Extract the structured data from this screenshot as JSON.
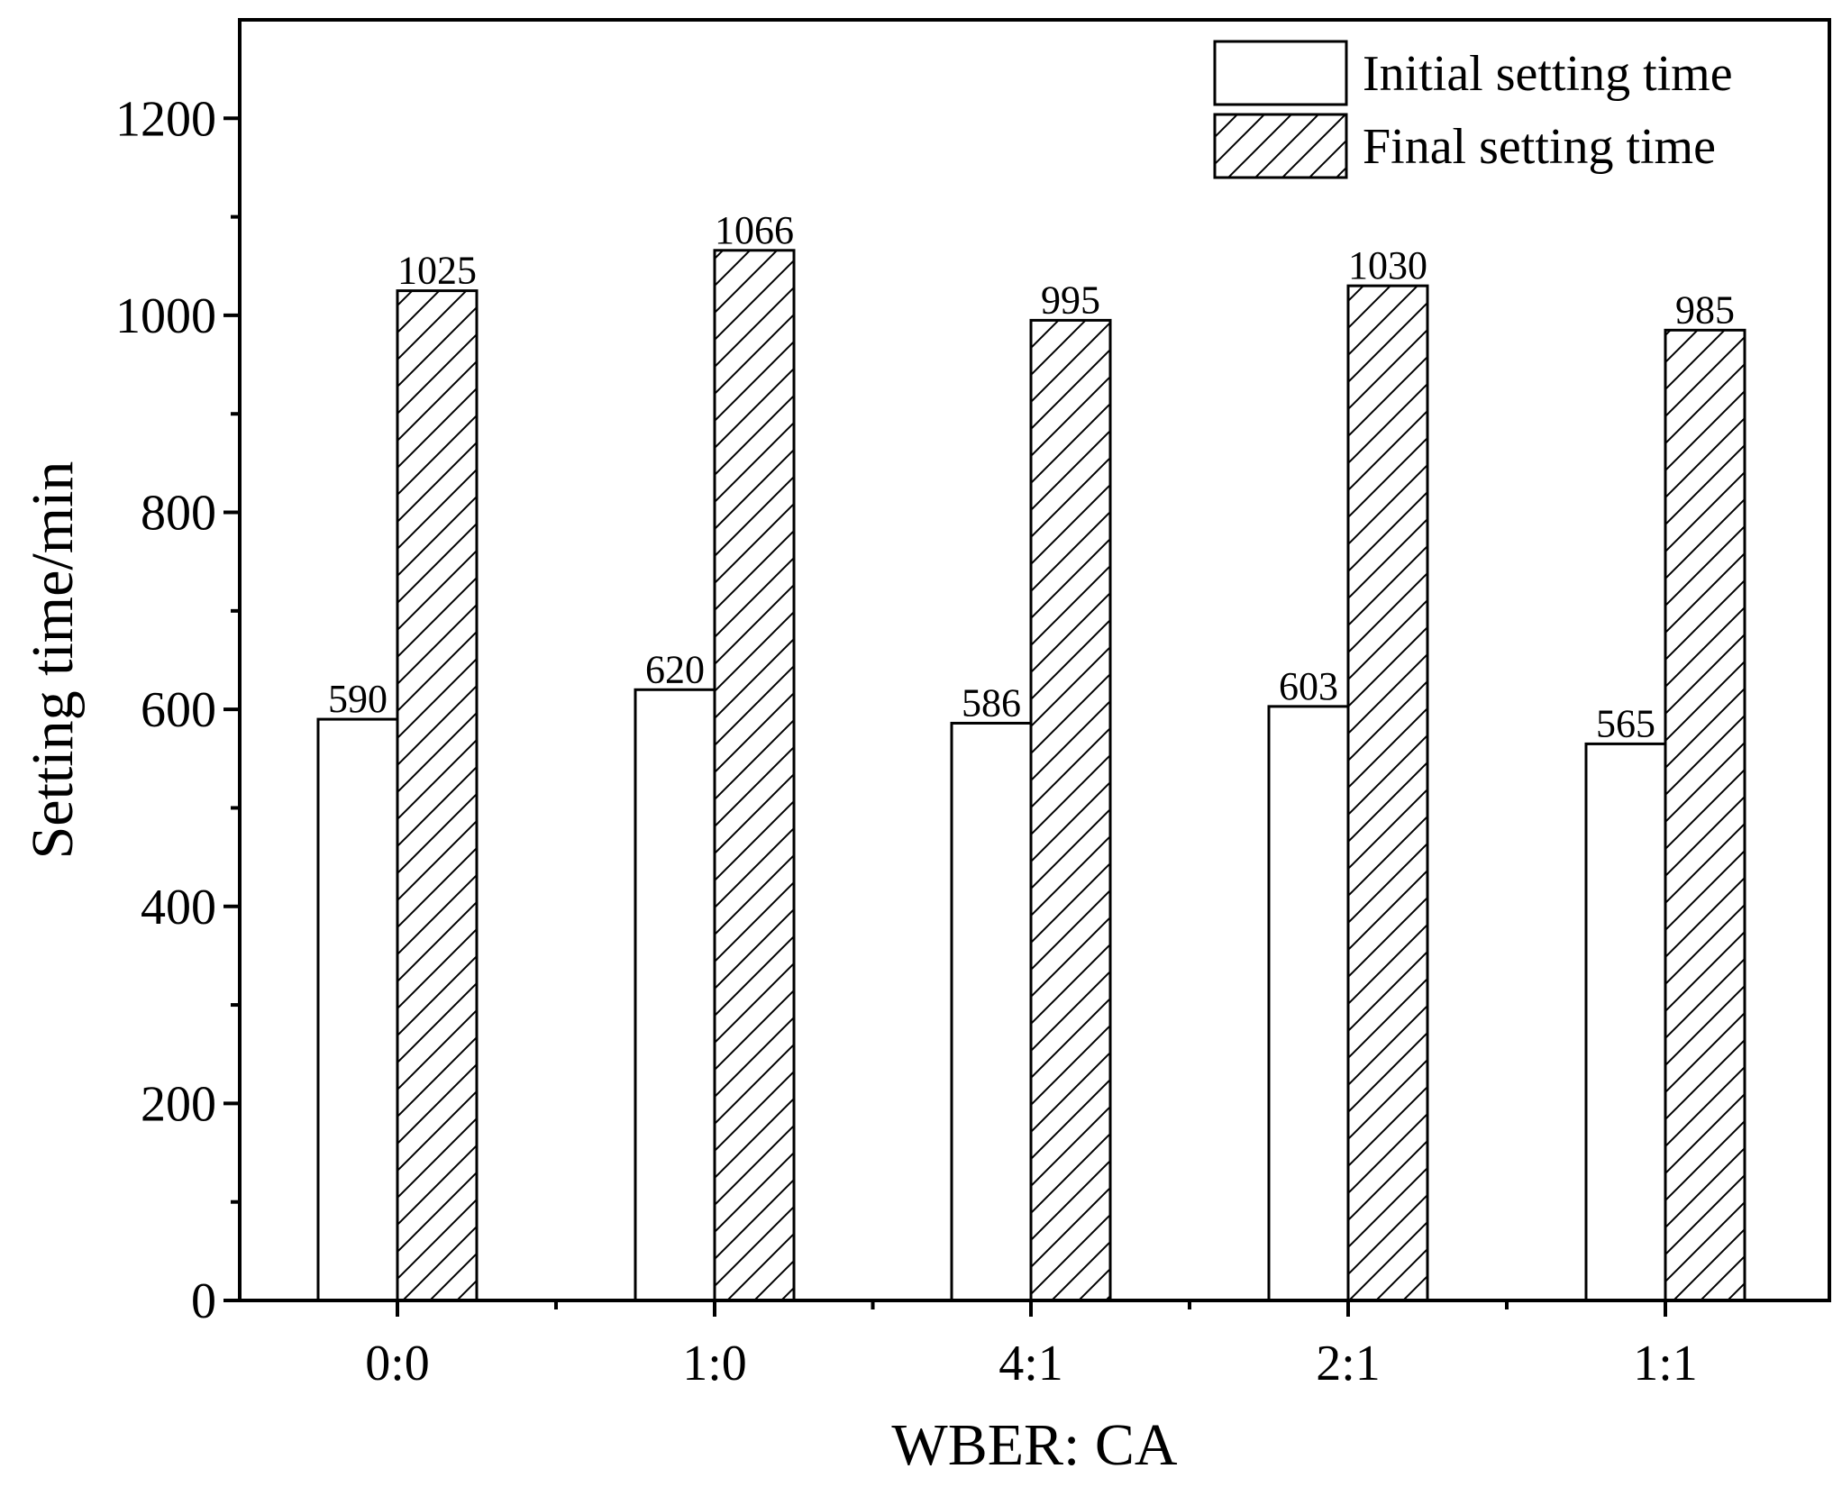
{
  "chart_data": {
    "type": "bar",
    "xlabel": "WBER: CA",
    "ylabel": "Setting time/min",
    "ylim": [
      0,
      1300
    ],
    "yticks": [
      0,
      200,
      400,
      600,
      800,
      1000,
      1200
    ],
    "categories": [
      "0:0",
      "1:0",
      "4:1",
      "2:1",
      "1:1"
    ],
    "series": [
      {
        "name": "Initial setting time",
        "values": [
          590,
          620,
          586,
          603,
          565
        ],
        "labels": [
          "590",
          "620",
          "586",
          "603",
          "565"
        ],
        "fill": "#ffffff",
        "pattern": "none"
      },
      {
        "name": "Final setting time",
        "values": [
          1025,
          1066,
          995,
          1030,
          985
        ],
        "labels": [
          "1025",
          "1066",
          "995",
          "1030",
          "985"
        ],
        "fill": "#ffffff",
        "pattern": "diagonal-hatch"
      }
    ],
    "legend_position": "top-right",
    "grid": false,
    "colors": {
      "stroke": "#000000",
      "fill": "#ffffff"
    }
  }
}
